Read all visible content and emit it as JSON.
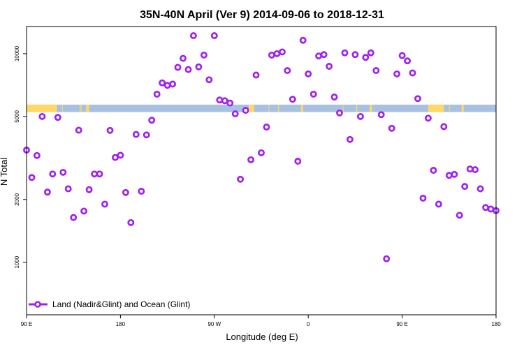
{
  "chart_data": {
    "type": "scatter",
    "title": "35N-40N April (Ver 9)   2014-09-06 to 2018-12-31",
    "xlabel": "Longitude (deg E)",
    "ylabel": "N Total",
    "y_scale": "log",
    "xlim": [
      90,
      540
    ],
    "ylim": [
      560,
      13500
    ],
    "x_ticks": [
      {
        "value": 90,
        "label": "90 E"
      },
      {
        "value": 180,
        "label": "180"
      },
      {
        "value": 270,
        "label": "90 W"
      },
      {
        "value": 360,
        "label": "0"
      },
      {
        "value": 450,
        "label": "90 E"
      },
      {
        "value": 540,
        "label": "180"
      }
    ],
    "y_ticks": [
      {
        "value": 1000,
        "label": "1000"
      },
      {
        "value": 2000,
        "label": "2000"
      },
      {
        "value": 5000,
        "label": "5000"
      },
      {
        "value": 10000,
        "label": "10000"
      }
    ],
    "grid": false,
    "legend": {
      "position": "bottom-left",
      "entries": [
        {
          "label": "Land (Nadir&Glint) and Ocean (Glint)",
          "color": "#a020f0"
        }
      ]
    },
    "surface_band": {
      "y_range": [
        5250,
        5700
      ],
      "land_color": "#ffd966",
      "ocean_color": "#a9c1e0",
      "land_segments": [
        [
          90,
          119
        ],
        [
          124,
          124.5
        ],
        [
          141,
          141.5
        ],
        [
          142,
          142.6
        ],
        [
          147,
          150
        ],
        [
          303,
          308
        ],
        [
          322,
          322.5
        ],
        [
          331,
          332
        ],
        [
          353,
          355
        ],
        [
          393,
          393.5
        ],
        [
          406,
          407
        ],
        [
          419,
          421
        ],
        [
          475,
          490
        ],
        [
          495,
          495.5
        ],
        [
          507,
          509
        ]
      ]
    },
    "series": [
      {
        "name": "Land (Nadir&Glint) and Ocean (Glint)",
        "color": "#a020f0",
        "x": [
          90,
          95,
          100,
          105,
          110,
          115,
          120,
          125,
          130,
          135,
          140,
          145,
          150,
          155,
          160,
          165,
          170,
          175,
          180,
          185,
          190,
          195,
          200,
          205,
          210,
          215,
          220,
          225,
          230,
          235,
          240,
          245,
          250,
          255,
          260,
          265,
          270,
          275,
          280,
          285,
          290,
          295,
          300,
          305,
          310,
          315,
          320,
          325,
          330,
          335,
          340,
          345,
          350,
          355,
          360,
          365,
          370,
          375,
          380,
          385,
          390,
          395,
          400,
          405,
          410,
          415,
          420,
          425,
          430,
          435,
          440,
          445,
          450,
          455,
          460,
          465,
          470,
          475,
          480,
          485,
          490,
          495,
          500,
          505,
          510,
          515,
          520,
          525,
          530,
          535,
          540
        ],
        "y": [
          3450,
          2550,
          3250,
          5000,
          2170,
          2650,
          4950,
          2700,
          2250,
          1640,
          4300,
          1760,
          2230,
          2650,
          2650,
          1900,
          4290,
          3180,
          3260,
          2160,
          1550,
          4100,
          2190,
          4080,
          4800,
          6400,
          7250,
          7050,
          7150,
          8600,
          9500,
          8400,
          12200,
          8650,
          9850,
          7500,
          12200,
          6000,
          5950,
          5800,
          5150,
          2500,
          5350,
          3100,
          7900,
          3350,
          4450,
          9850,
          10000,
          10200,
          8300,
          6050,
          3050,
          11600,
          8000,
          6400,
          9750,
          9900,
          8700,
          6200,
          5200,
          10100,
          3880,
          9900,
          5000,
          9600,
          10100,
          8300,
          5100,
          1040,
          4390,
          8000,
          9800,
          9240,
          8090,
          6090,
          2030,
          4910,
          2760,
          1900,
          4470,
          2610,
          2640,
          1680,
          2310,
          2800,
          2780,
          2250,
          1830,
          1800,
          1770
        ],
        "y_rev": []
      }
    ]
  }
}
